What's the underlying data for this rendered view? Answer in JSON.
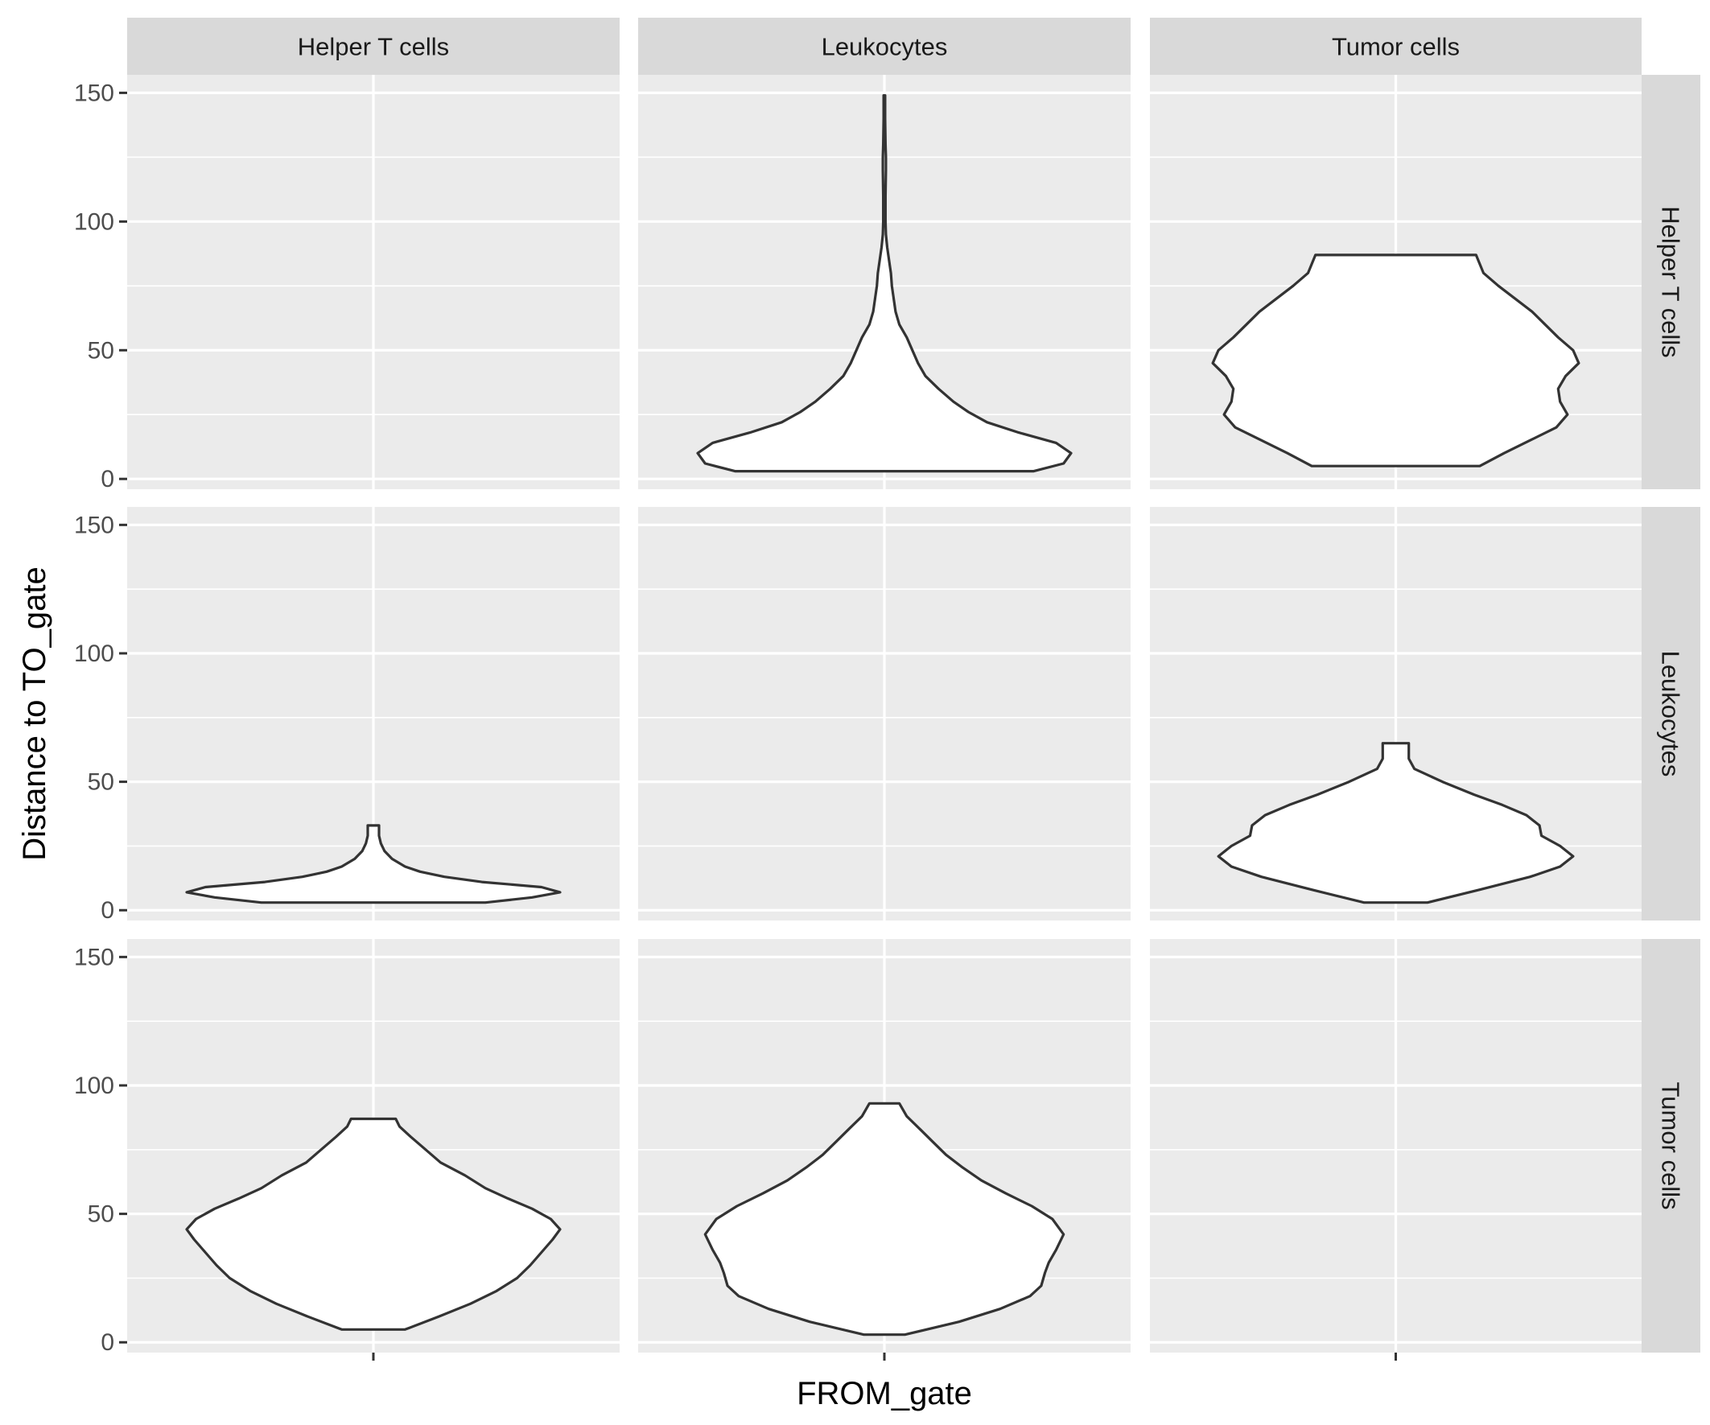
{
  "chart_data": {
    "type": "violin",
    "xlabel": "FROM_gate",
    "ylabel": "Distance to TO_gate",
    "facet_cols": [
      "Helper T cells",
      "Leukocytes",
      "Tumor cells"
    ],
    "facet_rows": [
      "Helper T cells",
      "Leukocytes",
      "Tumor cells"
    ],
    "ylim": [
      -4,
      157
    ],
    "yticks": [
      0,
      50,
      100,
      150
    ],
    "ytick_labels": [
      "0",
      "50",
      "100",
      "150"
    ],
    "grid": true,
    "panels": [
      {
        "row": 0,
        "col": 0,
        "empty": true
      },
      {
        "row": 0,
        "col": 1,
        "min": 3,
        "max": 149,
        "profile": [
          [
            3,
            0.8
          ],
          [
            6,
            0.96
          ],
          [
            10,
            1.0
          ],
          [
            14,
            0.92
          ],
          [
            18,
            0.72
          ],
          [
            22,
            0.55
          ],
          [
            26,
            0.45
          ],
          [
            30,
            0.37
          ],
          [
            35,
            0.29
          ],
          [
            40,
            0.22
          ],
          [
            45,
            0.18
          ],
          [
            50,
            0.15
          ],
          [
            55,
            0.12
          ],
          [
            60,
            0.08
          ],
          [
            65,
            0.06
          ],
          [
            70,
            0.05
          ],
          [
            75,
            0.04
          ],
          [
            80,
            0.035
          ],
          [
            85,
            0.025
          ],
          [
            90,
            0.015
          ],
          [
            95,
            0.008
          ],
          [
            100,
            0.006
          ],
          [
            110,
            0.006
          ],
          [
            120,
            0.008
          ],
          [
            125,
            0.008
          ],
          [
            130,
            0.006
          ],
          [
            140,
            0.004
          ],
          [
            149,
            0.004
          ]
        ]
      },
      {
        "row": 0,
        "col": 2,
        "min": 5,
        "max": 87,
        "profile": [
          [
            5,
            0.45
          ],
          [
            10,
            0.58
          ],
          [
            15,
            0.72
          ],
          [
            20,
            0.86
          ],
          [
            25,
            0.92
          ],
          [
            30,
            0.88
          ],
          [
            35,
            0.87
          ],
          [
            40,
            0.91
          ],
          [
            45,
            0.98
          ],
          [
            50,
            0.95
          ],
          [
            55,
            0.87
          ],
          [
            60,
            0.8
          ],
          [
            65,
            0.73
          ],
          [
            70,
            0.64
          ],
          [
            75,
            0.55
          ],
          [
            80,
            0.47
          ],
          [
            87,
            0.43
          ]
        ]
      },
      {
        "row": 1,
        "col": 0,
        "min": 3,
        "max": 33,
        "profile": [
          [
            3,
            0.6
          ],
          [
            5,
            0.85
          ],
          [
            7,
            1.0
          ],
          [
            9,
            0.9
          ],
          [
            11,
            0.58
          ],
          [
            13,
            0.38
          ],
          [
            15,
            0.25
          ],
          [
            17,
            0.17
          ],
          [
            20,
            0.1
          ],
          [
            23,
            0.06
          ],
          [
            26,
            0.04
          ],
          [
            29,
            0.03
          ],
          [
            33,
            0.03
          ]
        ]
      },
      {
        "row": 1,
        "col": 1,
        "empty": true
      },
      {
        "row": 1,
        "col": 2,
        "min": 3,
        "max": 65,
        "profile": [
          [
            3,
            0.17
          ],
          [
            8,
            0.45
          ],
          [
            13,
            0.72
          ],
          [
            17,
            0.88
          ],
          [
            21,
            0.95
          ],
          [
            25,
            0.88
          ],
          [
            29,
            0.78
          ],
          [
            33,
            0.77
          ],
          [
            37,
            0.7
          ],
          [
            41,
            0.57
          ],
          [
            45,
            0.42
          ],
          [
            50,
            0.25
          ],
          [
            55,
            0.1
          ],
          [
            59,
            0.07
          ],
          [
            65,
            0.07
          ]
        ]
      },
      {
        "row": 2,
        "col": 0,
        "min": 5,
        "max": 87,
        "profile": [
          [
            5,
            0.17
          ],
          [
            10,
            0.35
          ],
          [
            15,
            0.52
          ],
          [
            20,
            0.66
          ],
          [
            25,
            0.77
          ],
          [
            30,
            0.84
          ],
          [
            35,
            0.9
          ],
          [
            40,
            0.96
          ],
          [
            44,
            1.0
          ],
          [
            48,
            0.95
          ],
          [
            52,
            0.85
          ],
          [
            56,
            0.72
          ],
          [
            60,
            0.6
          ],
          [
            65,
            0.49
          ],
          [
            70,
            0.36
          ],
          [
            75,
            0.28
          ],
          [
            80,
            0.2
          ],
          [
            84,
            0.14
          ],
          [
            87,
            0.12
          ]
        ]
      },
      {
        "row": 2,
        "col": 1,
        "min": 3,
        "max": 93,
        "profile": [
          [
            3,
            0.11
          ],
          [
            8,
            0.4
          ],
          [
            13,
            0.62
          ],
          [
            18,
            0.78
          ],
          [
            22,
            0.84
          ],
          [
            27,
            0.86
          ],
          [
            31,
            0.88
          ],
          [
            36,
            0.92
          ],
          [
            42,
            0.96
          ],
          [
            48,
            0.9
          ],
          [
            53,
            0.79
          ],
          [
            58,
            0.65
          ],
          [
            63,
            0.52
          ],
          [
            68,
            0.42
          ],
          [
            73,
            0.33
          ],
          [
            78,
            0.26
          ],
          [
            83,
            0.19
          ],
          [
            88,
            0.12
          ],
          [
            93,
            0.08
          ]
        ]
      },
      {
        "row": 2,
        "col": 2,
        "empty": true
      }
    ]
  }
}
